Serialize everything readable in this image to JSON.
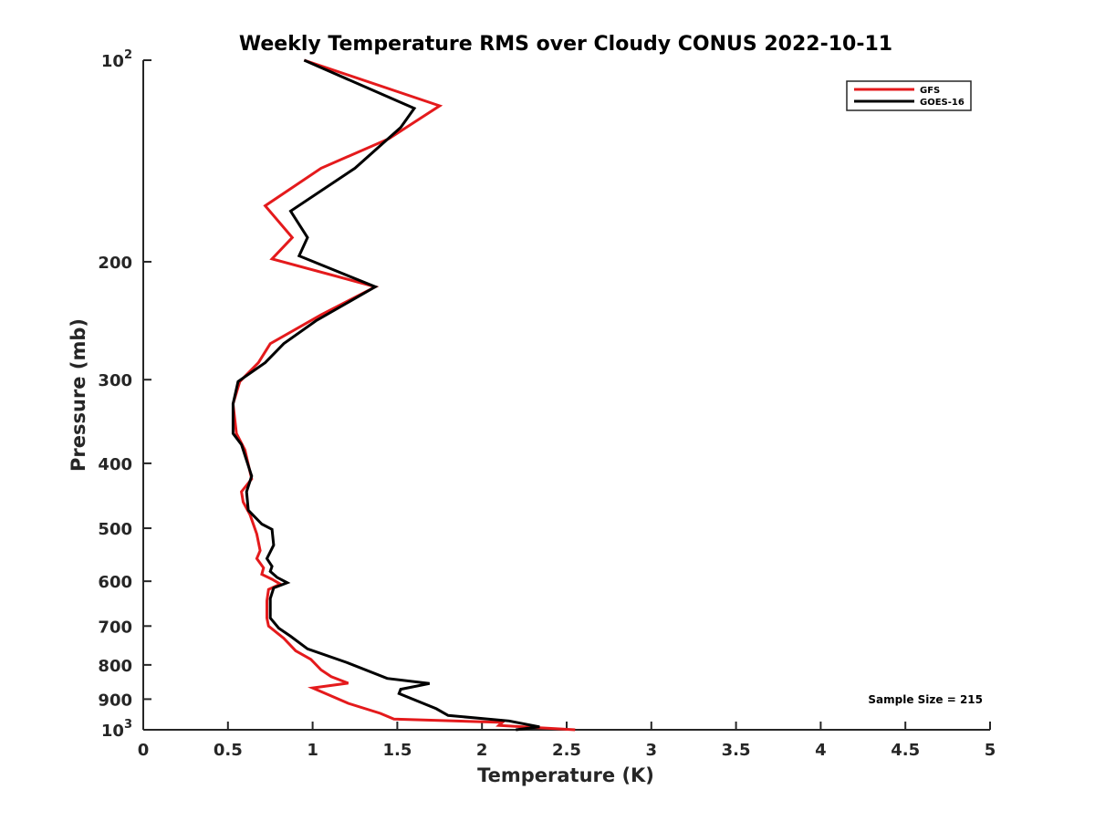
{
  "chart_data": {
    "type": "line",
    "title": "Weekly Temperature RMS over Cloudy CONUS 2022-10-11",
    "xlabel": "Temperature (K)",
    "ylabel": "Pressure (mb)",
    "xlim": [
      0,
      5
    ],
    "ylim": [
      100,
      1000
    ],
    "y_scale": "log",
    "y_reversed": true,
    "grid": false,
    "legend_position": "top-right",
    "x_ticks": [
      {
        "value": 0,
        "label": "0"
      },
      {
        "value": 0.5,
        "label": "0.5"
      },
      {
        "value": 1,
        "label": "1"
      },
      {
        "value": 1.5,
        "label": "1.5"
      },
      {
        "value": 2,
        "label": "2"
      },
      {
        "value": 2.5,
        "label": "2.5"
      },
      {
        "value": 3,
        "label": "3"
      },
      {
        "value": 3.5,
        "label": "3.5"
      },
      {
        "value": 4,
        "label": "4"
      },
      {
        "value": 4.5,
        "label": "4.5"
      },
      {
        "value": 5,
        "label": "5"
      }
    ],
    "y_ticks": [
      {
        "value": 100,
        "base": "10",
        "sup": "2"
      },
      {
        "value": 200,
        "base": "200",
        "sup": ""
      },
      {
        "value": 300,
        "base": "300",
        "sup": ""
      },
      {
        "value": 400,
        "base": "400",
        "sup": ""
      },
      {
        "value": 500,
        "base": "500",
        "sup": ""
      },
      {
        "value": 600,
        "base": "600",
        "sup": ""
      },
      {
        "value": 700,
        "base": "700",
        "sup": ""
      },
      {
        "value": 800,
        "base": "800",
        "sup": ""
      },
      {
        "value": 900,
        "base": "900",
        "sup": ""
      },
      {
        "value": 1000,
        "base": "10",
        "sup": "3"
      }
    ],
    "series": [
      {
        "name": "GFS",
        "color": "#e41a1c",
        "points": [
          [
            0.95,
            100
          ],
          [
            1.75,
            117
          ],
          [
            1.45,
            131
          ],
          [
            1.05,
            145
          ],
          [
            0.72,
            165
          ],
          [
            0.88,
            184
          ],
          [
            0.76,
            198
          ],
          [
            1.37,
            218
          ],
          [
            1.05,
            240
          ],
          [
            0.75,
            265
          ],
          [
            0.68,
            283
          ],
          [
            0.57,
            302
          ],
          [
            0.53,
            326
          ],
          [
            0.55,
            361
          ],
          [
            0.6,
            382
          ],
          [
            0.64,
            422
          ],
          [
            0.58,
            441
          ],
          [
            0.59,
            457
          ],
          [
            0.63,
            477
          ],
          [
            0.67,
            510
          ],
          [
            0.69,
            540
          ],
          [
            0.67,
            555
          ],
          [
            0.71,
            573
          ],
          [
            0.7,
            586
          ],
          [
            0.76,
            596
          ],
          [
            0.81,
            606
          ],
          [
            0.74,
            617
          ],
          [
            0.73,
            642
          ],
          [
            0.73,
            681
          ],
          [
            0.74,
            700
          ],
          [
            0.83,
            730
          ],
          [
            0.9,
            762
          ],
          [
            0.99,
            785
          ],
          [
            1.05,
            814
          ],
          [
            1.11,
            833
          ],
          [
            1.21,
            852
          ],
          [
            1.0,
            866
          ],
          [
            1.21,
            913
          ],
          [
            1.4,
            945
          ],
          [
            1.48,
            964
          ],
          [
            2.12,
            975
          ],
          [
            2.1,
            985
          ],
          [
            2.55,
            1000
          ]
        ]
      },
      {
        "name": "GOES-16",
        "color": "#000000",
        "points": [
          [
            0.95,
            100
          ],
          [
            1.6,
            118
          ],
          [
            1.52,
            126
          ],
          [
            1.25,
            145
          ],
          [
            0.87,
            168
          ],
          [
            0.97,
            184
          ],
          [
            0.92,
            196
          ],
          [
            1.37,
            218
          ],
          [
            1.02,
            245
          ],
          [
            0.83,
            265
          ],
          [
            0.72,
            283
          ],
          [
            0.56,
            302
          ],
          [
            0.53,
            326
          ],
          [
            0.53,
            361
          ],
          [
            0.58,
            375
          ],
          [
            0.64,
            418
          ],
          [
            0.61,
            441
          ],
          [
            0.62,
            470
          ],
          [
            0.7,
            493
          ],
          [
            0.76,
            502
          ],
          [
            0.77,
            530
          ],
          [
            0.73,
            555
          ],
          [
            0.76,
            570
          ],
          [
            0.75,
            580
          ],
          [
            0.79,
            592
          ],
          [
            0.85,
            603
          ],
          [
            0.77,
            614
          ],
          [
            0.75,
            637
          ],
          [
            0.75,
            681
          ],
          [
            0.8,
            705
          ],
          [
            0.87,
            725
          ],
          [
            0.97,
            757
          ],
          [
            1.2,
            793
          ],
          [
            1.44,
            838
          ],
          [
            1.69,
            853
          ],
          [
            1.52,
            870
          ],
          [
            1.51,
            883
          ],
          [
            1.73,
            930
          ],
          [
            1.8,
            952
          ],
          [
            2.16,
            970
          ],
          [
            2.34,
            990
          ],
          [
            2.2,
            1000
          ]
        ]
      }
    ],
    "annotation": "Sample Size = 215"
  }
}
